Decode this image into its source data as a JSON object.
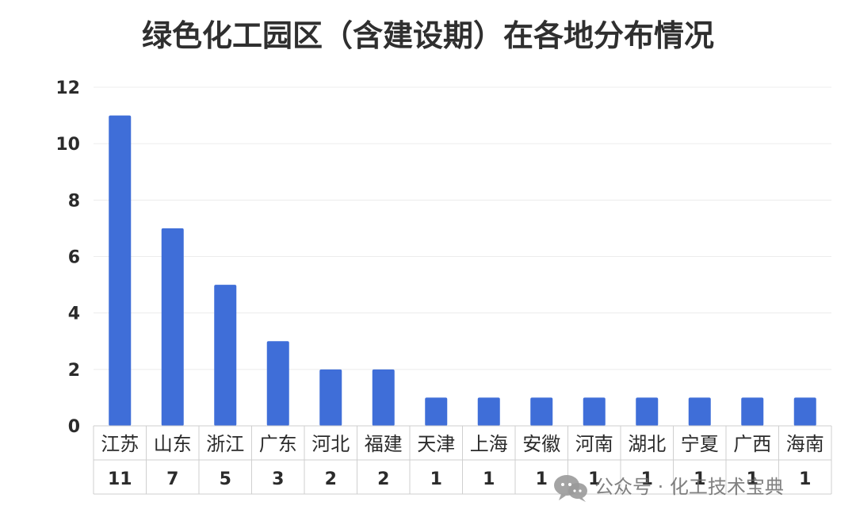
{
  "chart_data": {
    "type": "bar",
    "title": "绿色化工园区（含建设期）在各地分布情况",
    "categories": [
      "江苏",
      "山东",
      "浙江",
      "广东",
      "河北",
      "福建",
      "天津",
      "上海",
      "安徽",
      "河南",
      "湖北",
      "宁夏",
      "广西",
      "海南"
    ],
    "values": [
      11,
      7,
      5,
      3,
      2,
      2,
      1,
      1,
      1,
      1,
      1,
      1,
      1,
      1
    ],
    "value_labels": [
      "11",
      "7",
      "5",
      "3",
      "2",
      "2",
      "1",
      "1",
      "1",
      "1",
      "1",
      "1",
      "1",
      "1"
    ],
    "ylim": [
      0,
      12
    ],
    "yticks": [
      0,
      2,
      4,
      6,
      8,
      10,
      12
    ],
    "ytick_labels": [
      "0",
      "2",
      "4",
      "6",
      "8",
      "10",
      "12"
    ],
    "grid": true,
    "legend": "none",
    "bar_color": "#3f6ed8",
    "data_table": true
  },
  "watermark": {
    "text": "公众号 · 化工技术宝典",
    "icon": "wechat-icon"
  }
}
